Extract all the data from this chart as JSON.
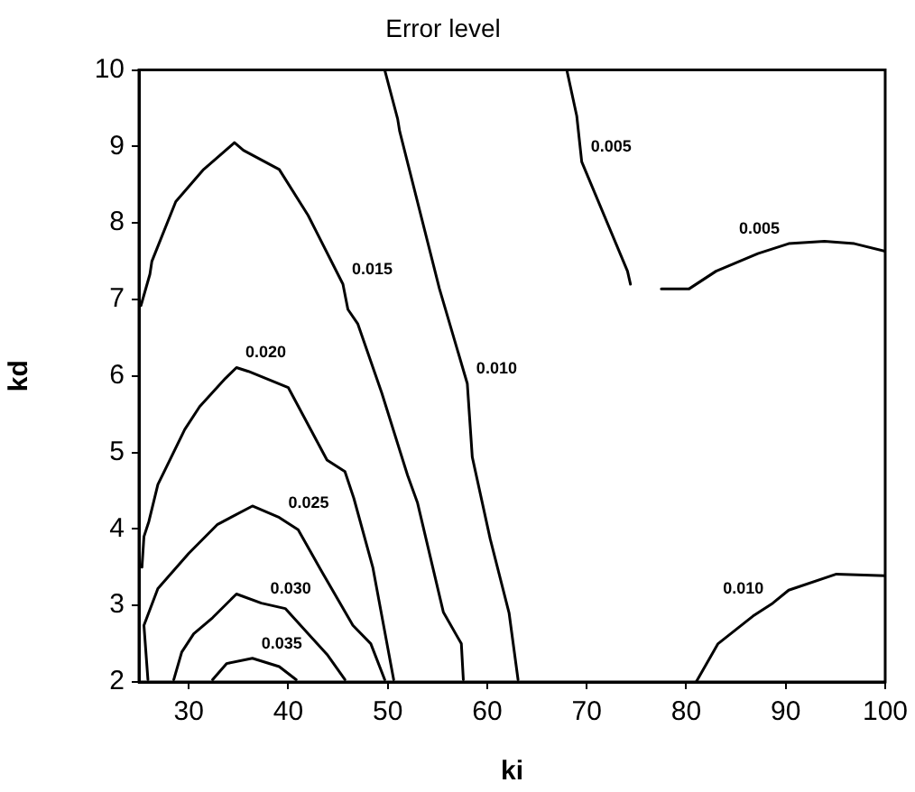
{
  "chart_data": {
    "type": "line",
    "title": "Error level",
    "xlabel": "ki",
    "ylabel": "kd",
    "xlim": [
      25,
      100
    ],
    "xticks": [
      30,
      40,
      50,
      60,
      70,
      80,
      90,
      100
    ],
    "ylim": [
      2,
      10
    ],
    "yticks": [
      2,
      3,
      4,
      5,
      6,
      7,
      8,
      9,
      10
    ],
    "grid": false,
    "legend": false,
    "marker": "none",
    "line_style": "solid",
    "series": [
      {
        "name": "0.015",
        "color": "#000000",
        "x": [
          25.2,
          26.1,
          26.3,
          28.7,
          31.5,
          34.6,
          35.5,
          39.1,
          42,
          45.5,
          46,
          47,
          49.4,
          52,
          53,
          55.6,
          57.4,
          57.6
        ],
        "values": [
          6.92,
          7.33,
          7.5,
          8.28,
          8.7,
          9.05,
          8.95,
          8.7,
          8.1,
          7.2,
          6.87,
          6.68,
          5.78,
          4.7,
          4.34,
          2.91,
          2.5,
          2.03
        ]
      },
      {
        "name": "0.010",
        "color": "#000000",
        "x": [
          49.7,
          51,
          51.2,
          55.2,
          58,
          58.5,
          60.3,
          62.2,
          63.1
        ],
        "values": [
          10,
          9.36,
          9.2,
          7.14,
          5.9,
          4.94,
          3.87,
          2.9,
          2.03
        ]
      },
      {
        "name": "0.005",
        "color": "#000000",
        "x": [
          68,
          69,
          69.5,
          74.1,
          74.4
        ],
        "values": [
          10,
          9.4,
          8.8,
          7.37,
          7.2
        ]
      },
      {
        "name": "0.005",
        "color": "#000000",
        "x": [
          77.5,
          80.3,
          83,
          87.2,
          90.3,
          93.9,
          96.9,
          100
        ],
        "values": [
          7.14,
          7.14,
          7.37,
          7.6,
          7.73,
          7.76,
          7.73,
          7.63
        ]
      },
      {
        "name": "0.010",
        "color": "#000000",
        "x": [
          81,
          83.2,
          86.7,
          88.7,
          90.3,
          95.1,
          100
        ],
        "values": [
          2,
          2.5,
          2.86,
          3.03,
          3.2,
          3.41,
          3.39
        ]
      },
      {
        "name": "0.020",
        "color": "#000000",
        "x": [
          25.3,
          25.5,
          26,
          26.9,
          29.6,
          31.1,
          33.7,
          34.8,
          36,
          40,
          43.9,
          45.7,
          46.6,
          48.5,
          50.6
        ],
        "values": [
          3.5,
          3.9,
          4.1,
          4.58,
          5.3,
          5.6,
          5.97,
          6.11,
          6.06,
          5.85,
          4.9,
          4.75,
          4.4,
          3.5,
          2.03
        ]
      },
      {
        "name": "0.025",
        "color": "#000000",
        "x": [
          25.9,
          25.5,
          26.9,
          30,
          32.9,
          36.4,
          39.1,
          41,
          43.3,
          46.5,
          48.3,
          49.7
        ],
        "values": [
          2.03,
          2.74,
          3.22,
          3.68,
          4.06,
          4.3,
          4.15,
          3.99,
          3.46,
          2.74,
          2.5,
          2.03
        ]
      },
      {
        "name": "0.030",
        "color": "#000000",
        "x": [
          28.5,
          29.3,
          30.5,
          32.4,
          34.8,
          37.3,
          39.7,
          42,
          43.9,
          45.7
        ],
        "values": [
          2.03,
          2.39,
          2.63,
          2.84,
          3.15,
          3.03,
          2.96,
          2.63,
          2.36,
          2.03
        ]
      },
      {
        "name": "0.035",
        "color": "#000000",
        "x": [
          32.4,
          33.8,
          36.4,
          39.1,
          40.8
        ],
        "values": [
          2.03,
          2.24,
          2.31,
          2.2,
          2.03
        ]
      }
    ]
  }
}
